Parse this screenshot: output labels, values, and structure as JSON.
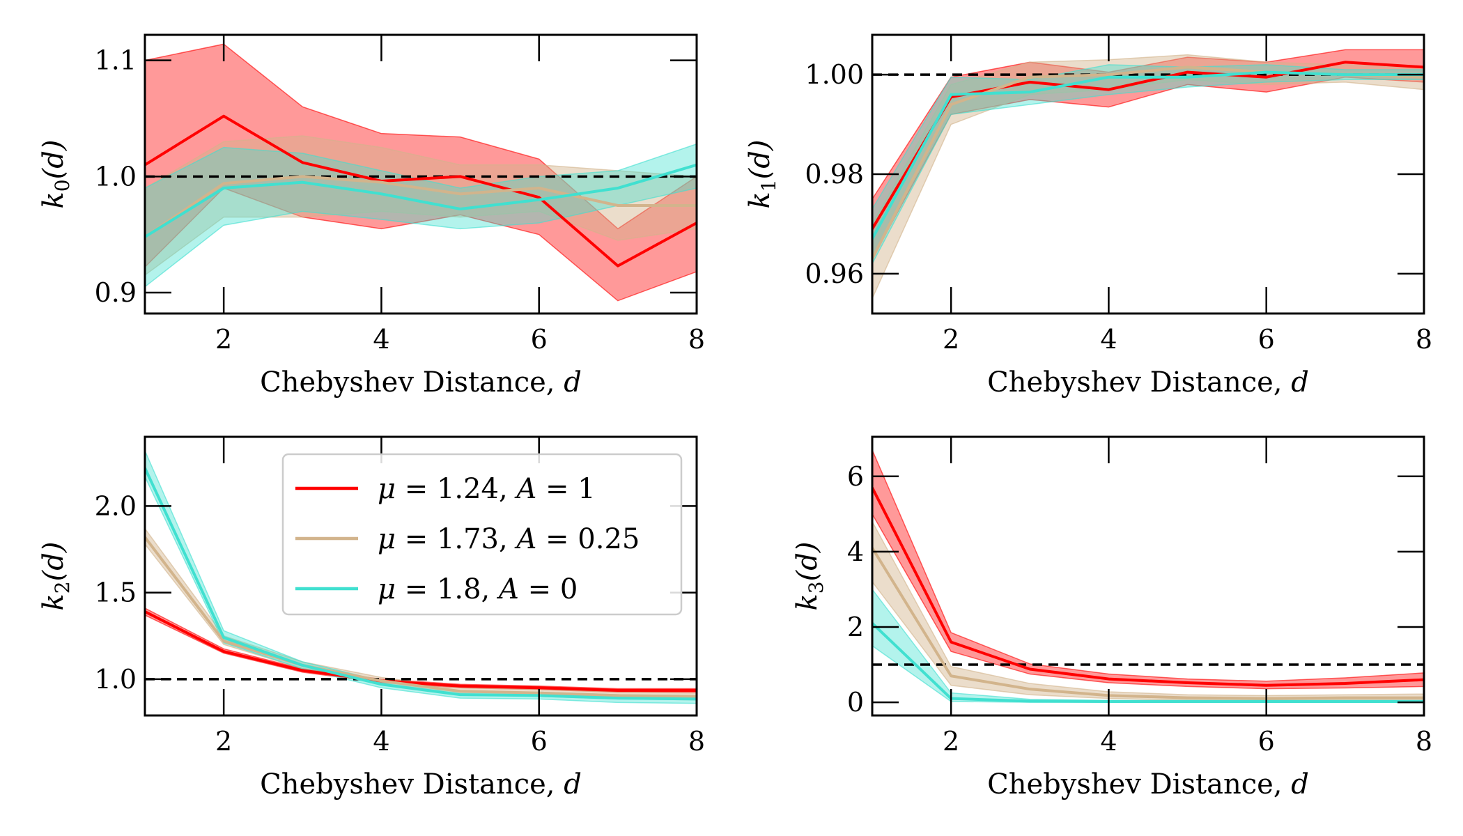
{
  "figure": {
    "panel_ids": [
      "k0",
      "k1",
      "k2",
      "k3"
    ]
  },
  "series_styles": [
    {
      "name": "mu124",
      "color": "#ff0000",
      "band_color": "#ff0000",
      "band_opacity": 0.4
    },
    {
      "name": "mu173",
      "color": "#d2b48c",
      "band_color": "#d2b48c",
      "band_opacity": 0.45
    },
    {
      "name": "mu18",
      "color": "#40e0d0",
      "band_color": "#40e0d0",
      "band_opacity": 0.4
    }
  ],
  "reference_line": {
    "y": 1.0,
    "color": "#000000",
    "style": "dashed"
  },
  "legend": {
    "panel": "k2",
    "entries": [
      {
        "prefix": "μ",
        "text": " = 1.24, ",
        "suffix": "A",
        "tail": " = 1",
        "color": "#ff0000"
      },
      {
        "prefix": "μ",
        "text": " = 1.73, ",
        "suffix": "A",
        "tail": " = 0.25",
        "color": "#d2b48c"
      },
      {
        "prefix": "μ",
        "text": " = 1.8, ",
        "suffix": "A",
        "tail": " = 0",
        "color": "#40e0d0"
      }
    ]
  },
  "chart_data": [
    {
      "id": "k0",
      "type": "line",
      "title": "",
      "xlabel": "Chebyshev Distance, ",
      "xlabel_var": "d",
      "ylabel": "k0(d)",
      "ylabel_parts": {
        "base": "k",
        "sub": "0",
        "arg": "(d)"
      },
      "xlim": [
        1,
        8
      ],
      "ylim": [
        0.882,
        1.122
      ],
      "xticks": [
        2,
        4,
        6,
        8
      ],
      "xtick_labels": [
        "2",
        "4",
        "6",
        "8"
      ],
      "yticks": [
        0.9,
        1.0,
        1.1
      ],
      "ytick_labels": [
        "0.9",
        "1.0",
        "1.1"
      ],
      "x": [
        1,
        2,
        3,
        4,
        5,
        6,
        7,
        8
      ],
      "series": [
        {
          "name": "μ = 1.24, A = 1",
          "values": [
            1.01,
            1.052,
            1.012,
            0.996,
            1.0,
            0.982,
            0.923,
            0.96
          ],
          "lower": [
            0.922,
            0.99,
            0.965,
            0.955,
            0.967,
            0.95,
            0.893,
            0.918
          ],
          "upper": [
            1.1,
            1.114,
            1.06,
            1.037,
            1.034,
            1.015,
            0.955,
            1.0
          ]
        },
        {
          "name": "μ = 1.73, A = 0.25",
          "values": [
            0.948,
            0.994,
            1.0,
            0.995,
            0.985,
            0.99,
            0.975,
            0.975
          ],
          "lower": [
            0.915,
            0.965,
            0.965,
            0.97,
            0.965,
            0.97,
            0.945,
            0.955
          ],
          "upper": [
            0.99,
            1.03,
            1.035,
            1.025,
            1.01,
            1.01,
            1.005,
            1.0
          ]
        },
        {
          "name": "μ = 1.8, A = 0",
          "values": [
            0.948,
            0.99,
            0.995,
            0.985,
            0.972,
            0.98,
            0.99,
            1.01
          ],
          "lower": [
            0.905,
            0.958,
            0.97,
            0.963,
            0.955,
            0.96,
            0.975,
            0.99
          ],
          "upper": [
            0.99,
            1.025,
            1.02,
            1.005,
            0.99,
            1.0,
            1.005,
            1.028
          ]
        }
      ]
    },
    {
      "id": "k1",
      "type": "line",
      "title": "",
      "xlabel": "Chebyshev Distance, ",
      "xlabel_var": "d",
      "ylabel": "k1(d)",
      "ylabel_parts": {
        "base": "k",
        "sub": "1",
        "arg": "(d)"
      },
      "xlim": [
        1,
        8
      ],
      "ylim": [
        0.952,
        1.008
      ],
      "xticks": [
        2,
        4,
        6,
        8
      ],
      "xtick_labels": [
        "2",
        "4",
        "6",
        "8"
      ],
      "yticks": [
        0.96,
        0.98,
        1.0
      ],
      "ytick_labels": [
        "0.96",
        "0.98",
        "1.00"
      ],
      "x": [
        1,
        2,
        3,
        4,
        5,
        6,
        7,
        8
      ],
      "series": [
        {
          "name": "μ = 1.24, A = 1",
          "values": [
            0.969,
            0.9955,
            0.9985,
            0.997,
            1.0005,
            0.9995,
            1.0025,
            1.0015
          ],
          "lower": [
            0.963,
            0.992,
            0.995,
            0.9935,
            0.998,
            0.9965,
            0.9995,
            0.9985
          ],
          "upper": [
            0.975,
            0.9995,
            1.0025,
            1.0005,
            1.0035,
            1.0025,
            1.005,
            1.005
          ]
        },
        {
          "name": "μ = 1.73, A = 0.25",
          "values": [
            0.963,
            0.994,
            0.9995,
            1.0,
            1.0015,
            1.0005,
            1.0,
            0.9995
          ],
          "lower": [
            0.955,
            0.99,
            0.996,
            0.997,
            0.999,
            0.998,
            0.9985,
            0.997
          ],
          "upper": [
            0.97,
            0.998,
            1.0025,
            1.003,
            1.004,
            1.0025,
            1.002,
            1.0015
          ]
        },
        {
          "name": "μ = 1.8, A = 0",
          "values": [
            0.967,
            0.996,
            0.9965,
            0.9995,
            0.9995,
            1.0005,
            1.0,
            1.0
          ],
          "lower": [
            0.962,
            0.992,
            0.994,
            0.996,
            0.9975,
            0.9985,
            0.999,
            0.999
          ],
          "upper": [
            0.973,
            0.9995,
            0.999,
            1.002,
            1.0015,
            1.002,
            1.001,
            1.001
          ]
        }
      ]
    },
    {
      "id": "k2",
      "type": "line",
      "title": "",
      "xlabel": "Chebyshev Distance, ",
      "xlabel_var": "d",
      "ylabel": "k2(d)",
      "ylabel_parts": {
        "base": "k",
        "sub": "2",
        "arg": "(d)"
      },
      "xlim": [
        1,
        8
      ],
      "ylim": [
        0.79,
        2.4
      ],
      "xticks": [
        2,
        4,
        6,
        8
      ],
      "xtick_labels": [
        "2",
        "4",
        "6",
        "8"
      ],
      "yticks": [
        1.0,
        1.5,
        2.0
      ],
      "ytick_labels": [
        "1.0",
        "1.5",
        "2.0"
      ],
      "x": [
        1,
        2,
        3,
        4,
        5,
        6,
        7,
        8
      ],
      "series": [
        {
          "name": "μ = 1.24, A = 1",
          "values": [
            1.39,
            1.16,
            1.05,
            0.99,
            0.96,
            0.95,
            0.935,
            0.935
          ],
          "lower": [
            1.37,
            1.15,
            1.04,
            0.98,
            0.95,
            0.94,
            0.925,
            0.925
          ],
          "upper": [
            1.41,
            1.175,
            1.06,
            1.0,
            0.97,
            0.96,
            0.945,
            0.945
          ]
        },
        {
          "name": "μ = 1.73, A = 0.25",
          "values": [
            1.82,
            1.22,
            1.08,
            0.99,
            0.93,
            0.92,
            0.905,
            0.9
          ],
          "lower": [
            1.78,
            1.2,
            1.06,
            0.97,
            0.91,
            0.9,
            0.885,
            0.88
          ],
          "upper": [
            1.87,
            1.25,
            1.1,
            1.01,
            0.95,
            0.94,
            0.925,
            0.92
          ]
        },
        {
          "name": "μ = 1.8, A = 0",
          "values": [
            2.22,
            1.24,
            1.08,
            0.97,
            0.91,
            0.905,
            0.89,
            0.885
          ],
          "lower": [
            2.17,
            1.21,
            1.06,
            0.95,
            0.89,
            0.885,
            0.865,
            0.86
          ],
          "upper": [
            2.32,
            1.28,
            1.1,
            0.99,
            0.93,
            0.925,
            0.91,
            0.905
          ]
        }
      ]
    },
    {
      "id": "k3",
      "type": "line",
      "title": "",
      "xlabel": "Chebyshev Distance, ",
      "xlabel_var": "d",
      "ylabel": "k3(d)",
      "ylabel_parts": {
        "base": "k",
        "sub": "3",
        "arg": "(d)"
      },
      "xlim": [
        1,
        8
      ],
      "ylim": [
        -0.35,
        7.05
      ],
      "xticks": [
        2,
        4,
        6,
        8
      ],
      "xtick_labels": [
        "2",
        "4",
        "6",
        "8"
      ],
      "yticks": [
        0,
        2,
        4,
        6
      ],
      "ytick_labels": [
        "0",
        "2",
        "4",
        "6"
      ],
      "x": [
        1,
        2,
        3,
        4,
        5,
        6,
        7,
        8
      ],
      "series": [
        {
          "name": "μ = 1.24, A = 1",
          "values": [
            5.7,
            1.6,
            0.88,
            0.62,
            0.52,
            0.45,
            0.5,
            0.6
          ],
          "lower": [
            5.0,
            1.35,
            0.75,
            0.52,
            0.42,
            0.36,
            0.38,
            0.42
          ],
          "upper": [
            6.7,
            1.85,
            1.02,
            0.75,
            0.62,
            0.56,
            0.65,
            0.78
          ]
        },
        {
          "name": "μ = 1.73, A = 0.25",
          "values": [
            4.1,
            0.7,
            0.35,
            0.18,
            0.12,
            0.1,
            0.12,
            0.12
          ],
          "lower": [
            3.2,
            0.45,
            0.2,
            0.1,
            0.06,
            0.05,
            0.06,
            0.06
          ],
          "upper": [
            4.8,
            0.95,
            0.5,
            0.28,
            0.2,
            0.18,
            0.2,
            0.22
          ]
        },
        {
          "name": "μ = 1.8, A = 0",
          "values": [
            2.1,
            0.1,
            0.03,
            0.02,
            0.02,
            0.02,
            0.02,
            0.02
          ],
          "lower": [
            1.5,
            0.02,
            0.0,
            0.0,
            0.0,
            0.0,
            0.0,
            0.0
          ],
          "upper": [
            3.0,
            0.25,
            0.08,
            0.05,
            0.05,
            0.05,
            0.05,
            0.05
          ]
        }
      ]
    }
  ]
}
